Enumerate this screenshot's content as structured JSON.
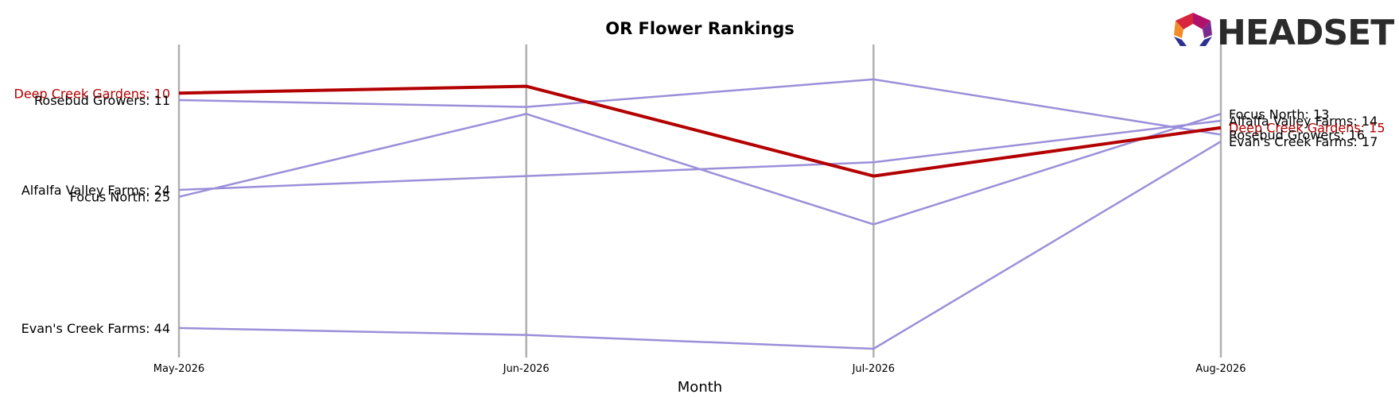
{
  "chart_data": {
    "type": "line",
    "title": "OR Flower Rankings",
    "xlabel": "Month",
    "ylabel": "",
    "categories": [
      "May-2026",
      "Jun-2026",
      "Jul-2026",
      "Aug-2026"
    ],
    "ylim": [
      1,
      47
    ],
    "y_inverted": true,
    "grid": "vertical lines at each month",
    "highlight_color": "#b30000",
    "other_color": "#9b8fd9",
    "vline_color": "#b0b0b0",
    "series": [
      {
        "name": "Deep Creek Gardens",
        "values": [
          10,
          9,
          22,
          15
        ],
        "highlight": true
      },
      {
        "name": "Rosebud Growers",
        "values": [
          11,
          12,
          8,
          16
        ],
        "highlight": false
      },
      {
        "name": "Alfalfa Valley Farms",
        "values": [
          24,
          22,
          20,
          14
        ],
        "highlight": false
      },
      {
        "name": "Focus North",
        "values": [
          25,
          13,
          29,
          13
        ],
        "highlight": false
      },
      {
        "name": "Evan's Creek Farms",
        "values": [
          44,
          45,
          47,
          17
        ],
        "highlight": false
      }
    ],
    "left_labels": [
      "Deep Creek Gardens: 10",
      "Rosebud Growers: 11",
      "Alfalfa Valley Farms: 24",
      "Focus North: 25",
      "Evan's Creek Farms: 44"
    ],
    "right_labels": [
      "Focus North: 13",
      "Alfalfa Valley Farms: 14",
      "Deep Creek Gardens: 15",
      "Rosebud Growers: 16",
      "Evan's Creek Farms: 17"
    ]
  },
  "logo": {
    "text": "HEADSET"
  }
}
